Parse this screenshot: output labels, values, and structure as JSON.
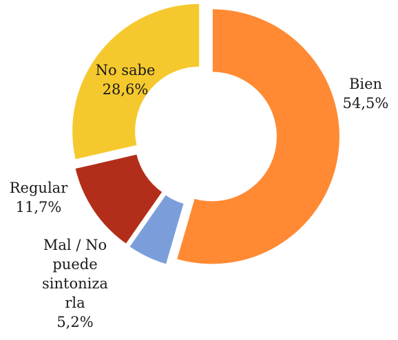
{
  "chart_data": {
    "type": "pie",
    "donut": true,
    "title": "",
    "slices": [
      {
        "name": "Bien",
        "value": 54.5,
        "value_label": "54,5%",
        "color": "#FF8A33"
      },
      {
        "name": "Mal / No puede sintonizarla",
        "value": 5.2,
        "value_label": "5,2%",
        "color": "#7B9EDB"
      },
      {
        "name": "Regular",
        "value": 11.7,
        "value_label": "11,7%",
        "color": "#B32E1A"
      },
      {
        "name": "No sabe",
        "value": 28.6,
        "value_label": "28,6%",
        "color": "#F5C92E"
      }
    ],
    "labels": {
      "bien": {
        "line1": "Bien",
        "line2": "54,5%"
      },
      "mal": {
        "line1": "Mal / No",
        "line2": "puede",
        "line3": "sintoniza",
        "line4": "rla",
        "line5": "5,2%"
      },
      "regular": {
        "line1": "Regular",
        "line2": "11,7%"
      },
      "no_sabe": {
        "line1": "No sabe",
        "line2": "28,6%"
      }
    },
    "legend": "none",
    "start_angle": "top",
    "direction": "clockwise"
  }
}
